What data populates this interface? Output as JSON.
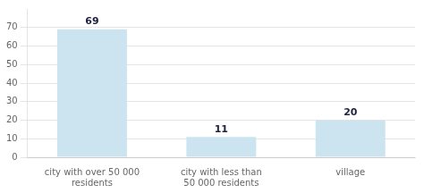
{
  "chart_data": {
    "type": "bar",
    "categories": [
      "city with over 50 000\nresidents",
      "city with less than\n50 000 residents",
      "village"
    ],
    "values": [
      69,
      11,
      20
    ],
    "color": "#cce4f0",
    "ylim": [
      0,
      80
    ],
    "yticks": [
      0,
      10,
      20,
      30,
      40,
      50,
      60,
      70
    ],
    "grid": true,
    "data_labels": true
  }
}
